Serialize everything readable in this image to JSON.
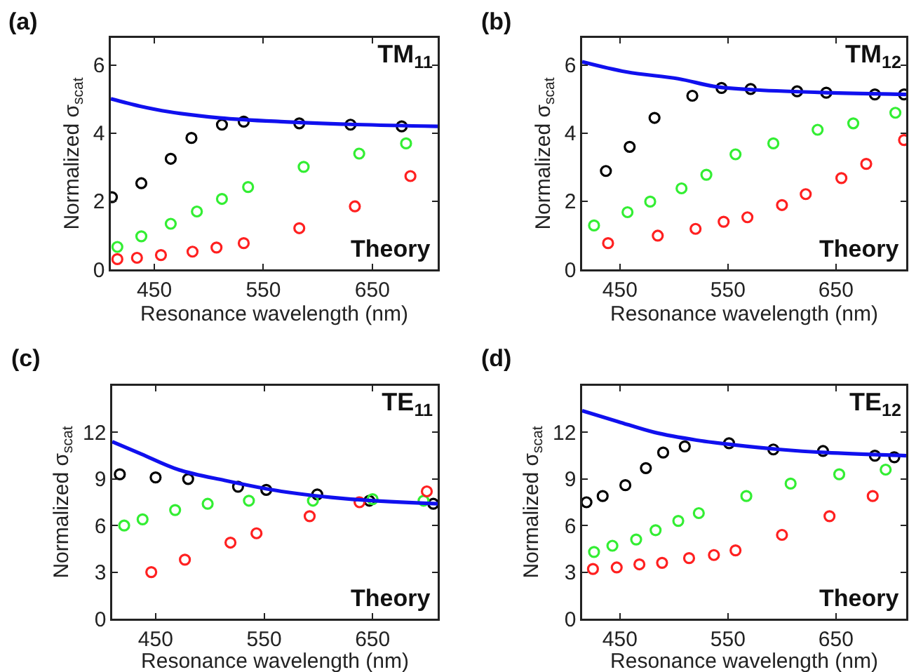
{
  "chart_data": [
    {
      "type": "scatter",
      "title": "TM$_{11}$",
      "xlabel": "Resonance wavelength (nm)",
      "ylabel": "Normalized σ$_{scat}$",
      "annotations": [
        "(a)",
        "Theory"
      ],
      "grid": false,
      "xlim": [
        410,
        710
      ],
      "xticks": [
        450,
        550,
        650
      ],
      "ylim": [
        0,
        6.8
      ],
      "yticks": [
        0,
        2,
        4,
        6
      ],
      "series": [
        {
          "color": "#000000",
          "marker": "circle",
          "x": [
            411,
            438,
            465,
            484,
            512,
            532,
            583,
            630,
            677
          ],
          "values": [
            2.12,
            2.53,
            3.25,
            3.86,
            4.25,
            4.34,
            4.29,
            4.25,
            4.2
          ]
        },
        {
          "color": "#33ee33",
          "marker": "circle",
          "x": [
            416,
            438,
            465,
            489,
            512,
            536,
            587,
            638,
            681
          ],
          "values": [
            0.66,
            0.97,
            1.34,
            1.7,
            2.07,
            2.42,
            3.01,
            3.4,
            3.7
          ]
        },
        {
          "color": "#ff2020",
          "marker": "circle",
          "x": [
            416,
            434,
            456,
            485,
            507,
            532,
            583,
            634,
            685
          ],
          "values": [
            0.3,
            0.34,
            0.42,
            0.52,
            0.64,
            0.77,
            1.21,
            1.85,
            2.74
          ]
        },
        {
          "type": "line",
          "color": "#1010ee",
          "x": [
            410,
            437,
            463,
            510,
            566,
            630,
            710
          ],
          "values": [
            5.01,
            4.79,
            4.63,
            4.45,
            4.34,
            4.26,
            4.2
          ]
        }
      ]
    },
    {
      "type": "scatter",
      "title": "TM$_{12}$",
      "xlabel": "Resonance wavelength (nm)",
      "ylabel": "Normalized σ$_{scat}$",
      "annotations": [
        "(b)",
        "Theory"
      ],
      "grid": false,
      "xlim": [
        415,
        715
      ],
      "xticks": [
        450,
        550,
        650
      ],
      "ylim": [
        0,
        6.8
      ],
      "yticks": [
        0,
        2,
        4,
        6
      ],
      "series": [
        {
          "color": "#000000",
          "marker": "circle",
          "x": [
            437,
            459,
            482,
            517,
            544,
            571,
            614,
            641,
            686,
            713
          ],
          "values": [
            2.89,
            3.6,
            4.45,
            5.1,
            5.33,
            5.3,
            5.23,
            5.19,
            5.14,
            5.14
          ]
        },
        {
          "color": "#33ee33",
          "marker": "circle",
          "x": [
            426,
            457,
            478,
            507,
            530,
            557,
            592,
            633,
            666,
            705
          ],
          "values": [
            1.29,
            1.68,
            1.99,
            2.38,
            2.78,
            3.38,
            3.7,
            4.1,
            4.29,
            4.6
          ]
        },
        {
          "color": "#ff2020",
          "marker": "circle",
          "x": [
            439,
            485,
            520,
            546,
            568,
            600,
            622,
            655,
            678,
            713
          ],
          "values": [
            0.77,
            0.99,
            1.19,
            1.4,
            1.53,
            1.89,
            2.21,
            2.68,
            3.1,
            3.8
          ]
        },
        {
          "type": "line",
          "color": "#1010ee",
          "x": [
            415,
            456,
            504,
            538,
            577,
            641,
            715
          ],
          "values": [
            6.1,
            5.8,
            5.6,
            5.37,
            5.27,
            5.19,
            5.14
          ]
        }
      ]
    },
    {
      "type": "scatter",
      "title": "TE$_{11}$",
      "xlabel": "Resonance wavelength (nm)",
      "ylabel": "Normalized σ$_{scat}$",
      "annotations": [
        "(c)",
        "Theory"
      ],
      "grid": false,
      "xlim": [
        410,
        710
      ],
      "xticks": [
        450,
        550,
        650
      ],
      "ylim": [
        0,
        15
      ],
      "yticks": [
        0,
        3,
        6,
        9,
        12
      ],
      "series": [
        {
          "color": "#000000",
          "marker": "circle",
          "x": [
            417,
            450,
            480,
            526,
            552,
            599,
            647,
            706
          ],
          "values": [
            9.3,
            9.1,
            9.0,
            8.5,
            8.3,
            8.0,
            7.6,
            7.4
          ]
        },
        {
          "color": "#33ee33",
          "marker": "circle",
          "x": [
            421,
            438,
            468,
            498,
            536,
            595,
            650,
            697
          ],
          "values": [
            6.0,
            6.4,
            7.0,
            7.4,
            7.6,
            7.6,
            7.7,
            7.6
          ]
        },
        {
          "color": "#ff2020",
          "marker": "circle",
          "x": [
            446,
            477,
            519,
            543,
            592,
            638,
            700
          ],
          "values": [
            3.0,
            3.8,
            4.9,
            5.5,
            6.6,
            7.5,
            8.2
          ]
        },
        {
          "type": "line",
          "color": "#1010ee",
          "x": [
            410,
            437,
            471,
            514,
            566,
            630,
            710
          ],
          "values": [
            11.4,
            10.6,
            9.6,
            8.9,
            8.2,
            7.7,
            7.4
          ]
        }
      ]
    },
    {
      "type": "scatter",
      "title": "TE$_{12}$",
      "xlabel": "Resonance wavelength (nm)",
      "ylabel": "Normalized σ$_{scat}$",
      "annotations": [
        "(d)",
        "Theory"
      ],
      "grid": false,
      "xlim": [
        415,
        715
      ],
      "xticks": [
        450,
        550,
        650
      ],
      "ylim": [
        0,
        15
      ],
      "yticks": [
        0,
        3,
        6,
        9,
        12
      ],
      "series": [
        {
          "color": "#000000",
          "marker": "circle",
          "x": [
            419,
            434,
            455,
            474,
            490,
            510,
            551,
            592,
            638,
            686,
            704
          ],
          "values": [
            7.5,
            7.9,
            8.6,
            9.7,
            10.7,
            11.1,
            11.3,
            10.9,
            10.8,
            10.5,
            10.4
          ]
        },
        {
          "color": "#33ee33",
          "marker": "circle",
          "x": [
            426,
            443,
            465,
            483,
            504,
            523,
            567,
            608,
            653,
            696
          ],
          "values": [
            4.3,
            4.7,
            5.1,
            5.7,
            6.3,
            6.8,
            7.9,
            8.7,
            9.3,
            9.6
          ]
        },
        {
          "color": "#ff2020",
          "marker": "circle",
          "x": [
            425,
            447,
            468,
            489,
            514,
            537,
            557,
            600,
            644,
            684
          ],
          "values": [
            3.2,
            3.3,
            3.5,
            3.6,
            3.9,
            4.1,
            4.4,
            5.4,
            6.6,
            7.9
          ]
        },
        {
          "type": "line",
          "color": "#1010ee",
          "x": [
            415,
            448,
            482,
            521,
            555,
            598,
            641,
            715
          ],
          "values": [
            13.4,
            12.7,
            12.0,
            11.5,
            11.2,
            10.9,
            10.7,
            10.5
          ]
        }
      ]
    }
  ]
}
